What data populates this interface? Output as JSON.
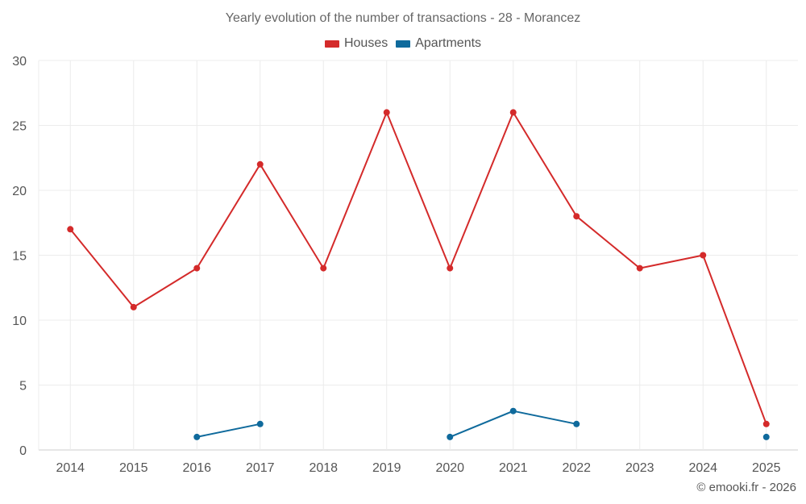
{
  "chart_data": {
    "type": "line",
    "title": "Yearly evolution of the number of transactions - 28 - Morancez",
    "categories": [
      "2014",
      "2015",
      "2016",
      "2017",
      "2018",
      "2019",
      "2020",
      "2021",
      "2022",
      "2023",
      "2024",
      "2025"
    ],
    "yticks": [
      0,
      5,
      10,
      15,
      20,
      25,
      30
    ],
    "ylim": [
      0,
      30
    ],
    "xlabel": "",
    "ylabel": "",
    "grid": true,
    "legend_position": "top-center",
    "series": [
      {
        "name": "Houses",
        "color": "#d42a2a",
        "values": [
          17,
          11,
          14,
          22,
          14,
          26,
          14,
          26,
          18,
          14,
          15,
          2
        ]
      },
      {
        "name": "Apartments",
        "color": "#0f6a9c",
        "values": [
          null,
          null,
          1,
          2,
          null,
          null,
          1,
          3,
          2,
          null,
          null,
          1
        ]
      }
    ]
  },
  "credit": "© emooki.fr - 2026"
}
